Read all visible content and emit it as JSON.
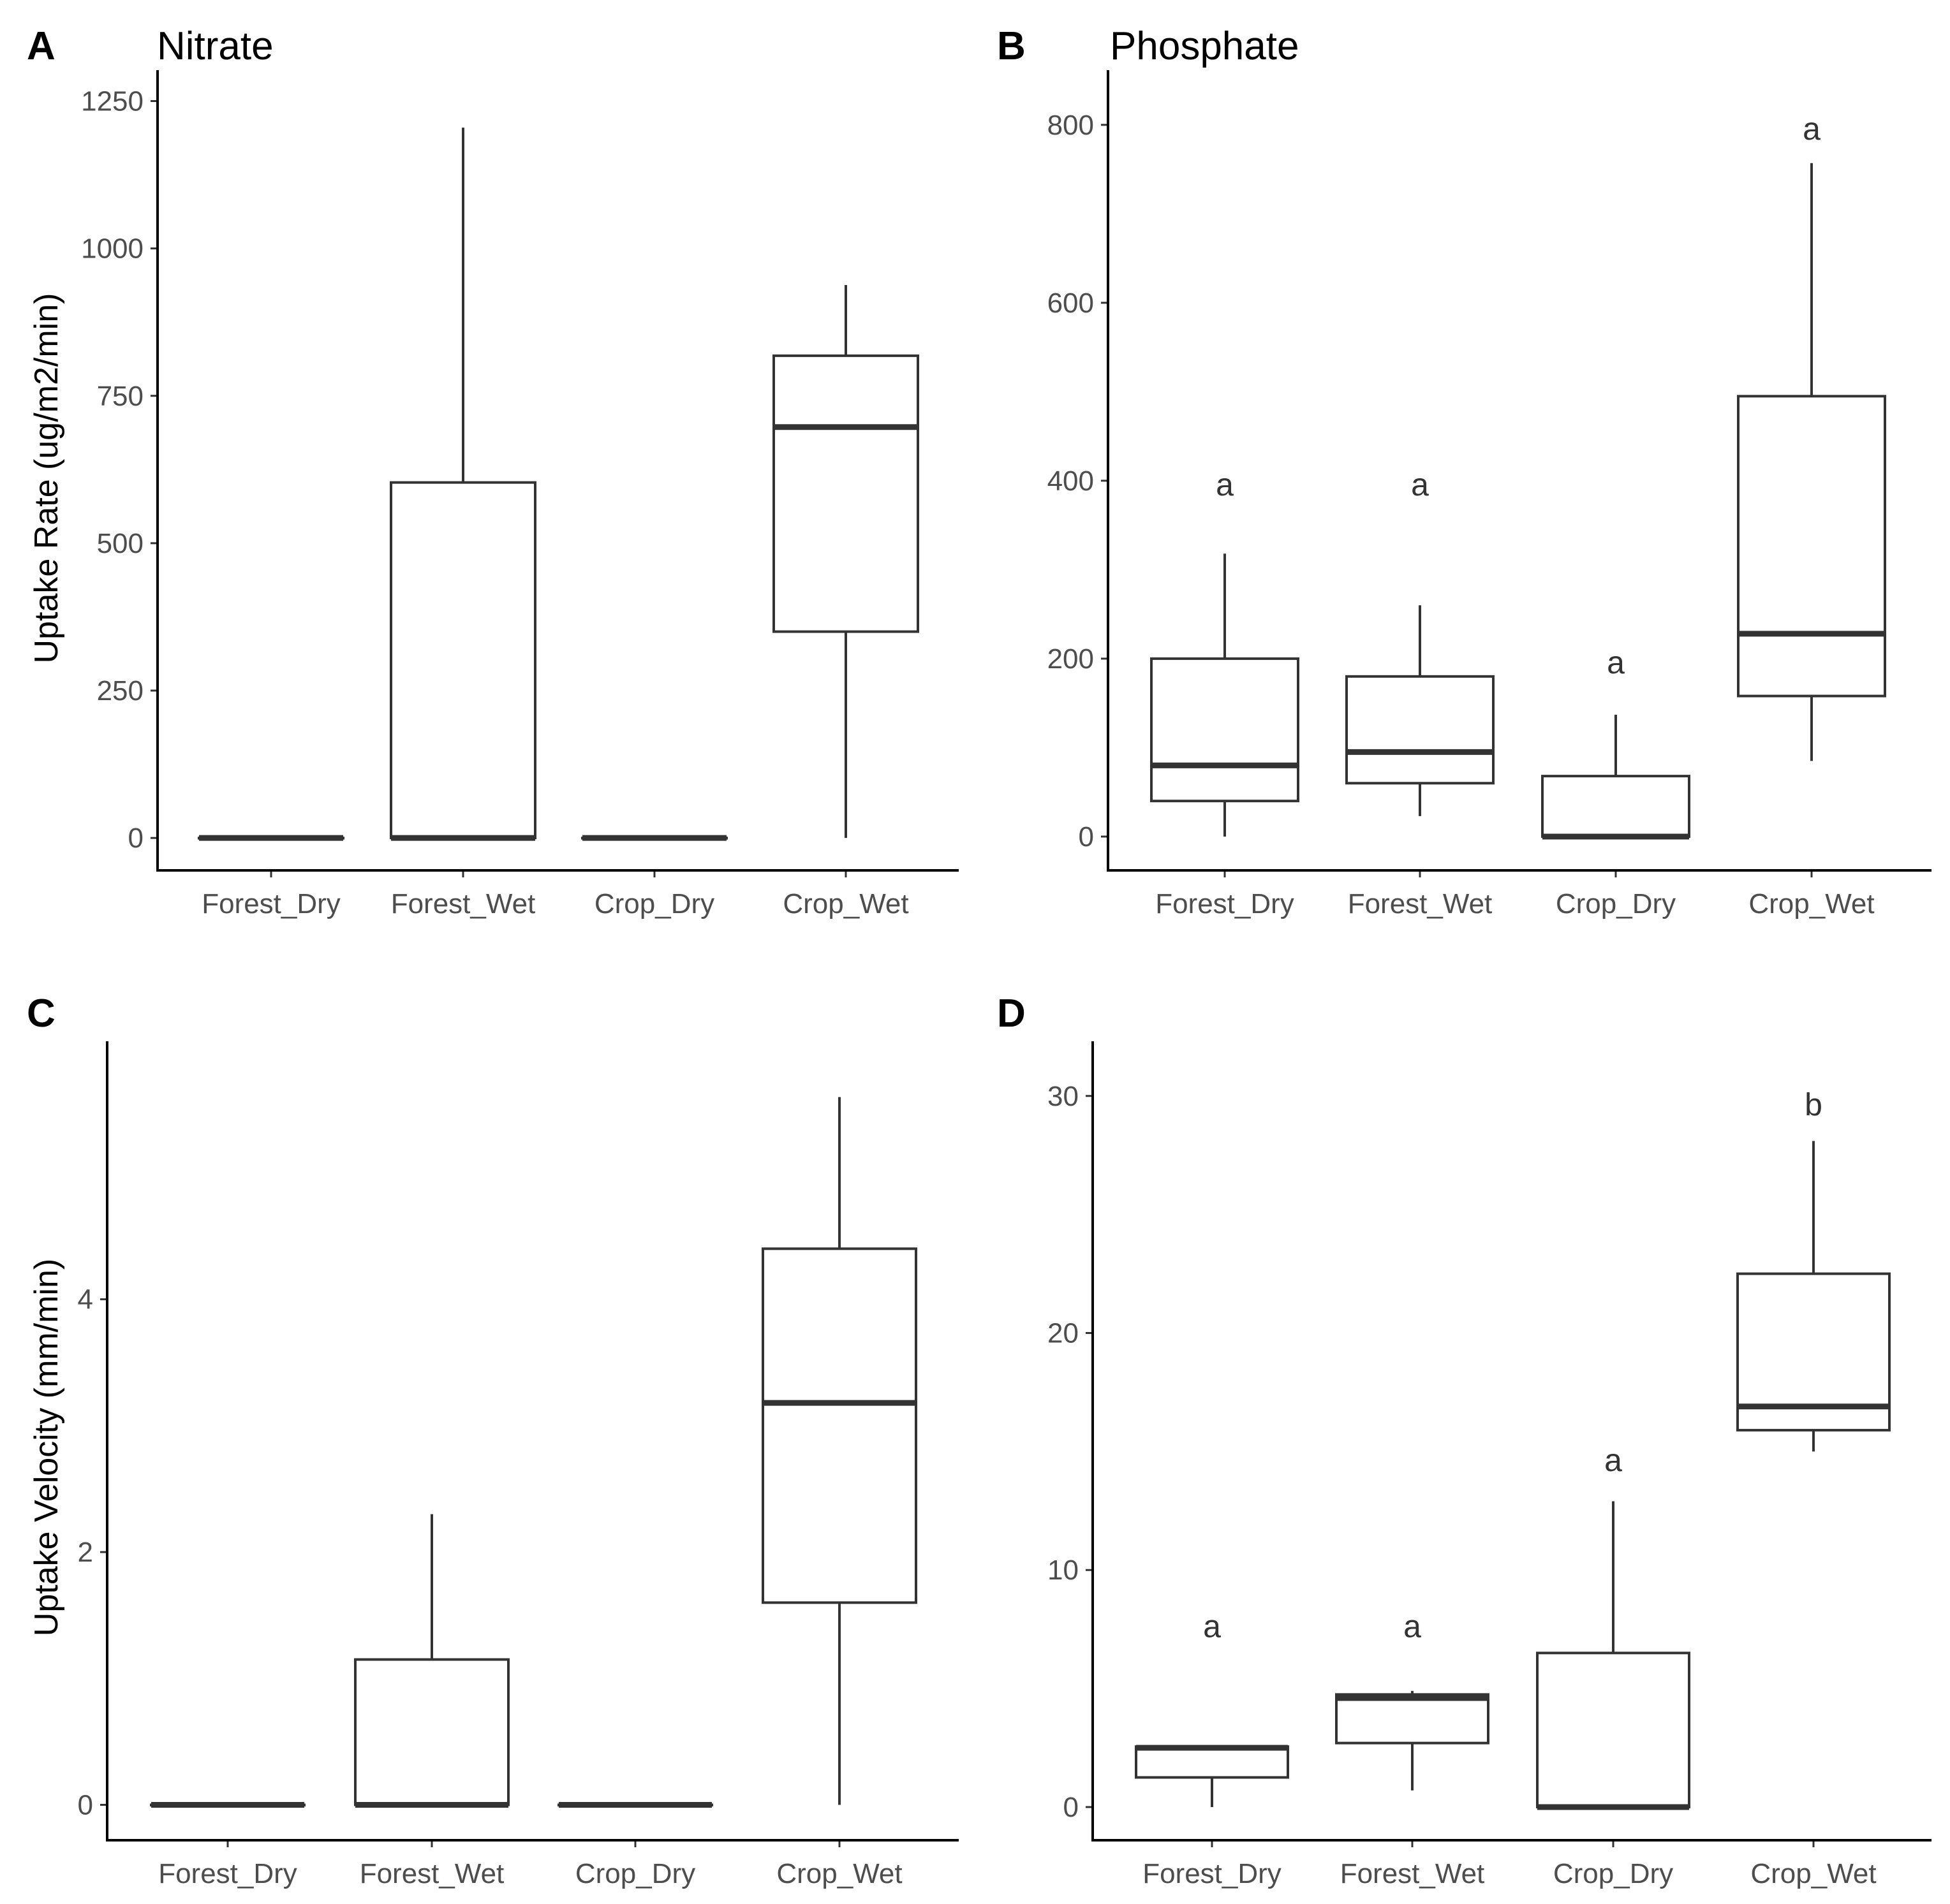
{
  "chart_data": [
    {
      "type": "boxplot",
      "panel": "A",
      "title": "Nitrate",
      "xlabel": "",
      "ylabel": "Uptake Rate (ug/m2/min)",
      "ylim": [
        -55,
        1270
      ],
      "yticks": [
        0,
        250,
        500,
        750,
        1000,
        1250
      ],
      "categories": [
        "Forest_Dry",
        "Forest_Wet",
        "Crop_Dry",
        "Crop_Wet"
      ],
      "boxes": [
        {
          "min": 0,
          "q1": 0,
          "median": 0,
          "q3": 0,
          "max": 0
        },
        {
          "min": 0,
          "q1": 0,
          "median": 0,
          "q3": 603,
          "max": 1205
        },
        {
          "min": 0,
          "q1": 0,
          "median": 0,
          "q3": 0,
          "max": 0
        },
        {
          "min": 0,
          "q1": 350,
          "median": 697,
          "q3": 818,
          "max": 938
        }
      ],
      "letters": []
    },
    {
      "type": "boxplot",
      "panel": "B",
      "title": "Phosphate",
      "xlabel": "",
      "ylabel": "",
      "ylim": [
        -38,
        840
      ],
      "yticks": [
        0,
        200,
        400,
        600,
        800
      ],
      "categories": [
        "Forest_Dry",
        "Forest_Wet",
        "Crop_Dry",
        "Crop_Wet"
      ],
      "boxes": [
        {
          "min": 0,
          "q1": 40,
          "median": 80,
          "q3": 200,
          "max": 318
        },
        {
          "min": 23,
          "q1": 60,
          "median": 95,
          "q3": 180,
          "max": 260
        },
        {
          "min": 0,
          "q1": 0,
          "median": 0,
          "q3": 68,
          "max": 137
        },
        {
          "min": 85,
          "q1": 158,
          "median": 228,
          "q3": 495,
          "max": 757
        }
      ],
      "letters": [
        {
          "text": "a",
          "y": 395
        },
        {
          "text": "a",
          "y": 395
        },
        {
          "text": "a",
          "y": 195
        },
        {
          "text": "a",
          "y": 795
        }
      ]
    },
    {
      "type": "boxplot",
      "panel": "C",
      "title": "",
      "xlabel": "",
      "ylabel": "Uptake Velocity (mm/min)",
      "ylim": [
        -0.28,
        5.89
      ],
      "yticks": [
        0,
        2,
        4
      ],
      "categories": [
        "Forest_Dry",
        "Forest_Wet",
        "Crop_Dry",
        "Crop_Wet"
      ],
      "boxes": [
        {
          "min": 0,
          "q1": 0,
          "median": 0,
          "q3": 0,
          "max": 0
        },
        {
          "min": 0,
          "q1": 0,
          "median": 0,
          "q3": 1.15,
          "max": 2.3
        },
        {
          "min": 0,
          "q1": 0,
          "median": 0,
          "q3": 0,
          "max": 0
        },
        {
          "min": 0,
          "q1": 1.6,
          "median": 3.18,
          "q3": 4.4,
          "max": 5.6
        }
      ],
      "letters": []
    },
    {
      "type": "boxplot",
      "panel": "D",
      "title": "",
      "xlabel": "",
      "ylabel": "",
      "ylim": [
        -1.4,
        31.5
      ],
      "yticks": [
        0,
        10,
        20,
        30
      ],
      "categories": [
        "Forest_Dry",
        "Forest_Wet",
        "Crop_Dry",
        "Crop_Wet"
      ],
      "boxes": [
        {
          "min": 0,
          "q1": 1.25,
          "median": 2.5,
          "q3": 2.55,
          "max": 2.55
        },
        {
          "min": 0.7,
          "q1": 2.7,
          "median": 4.6,
          "q3": 4.75,
          "max": 4.9
        },
        {
          "min": 0,
          "q1": 0,
          "median": 0,
          "q3": 6.5,
          "max": 12.9
        },
        {
          "min": 15,
          "q1": 15.9,
          "median": 16.9,
          "q3": 22.5,
          "max": 28.1
        }
      ],
      "letters": [
        {
          "text": "a",
          "y": 7.6
        },
        {
          "text": "a",
          "y": 7.6
        },
        {
          "text": "a",
          "y": 14.6
        },
        {
          "text": "b",
          "y": 29.6
        }
      ]
    }
  ]
}
